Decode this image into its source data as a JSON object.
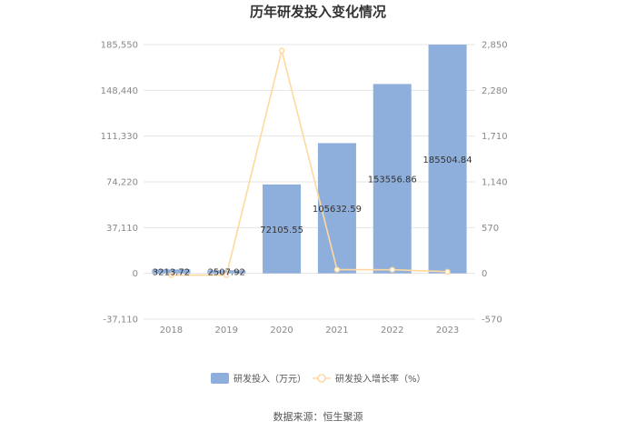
{
  "chart_data": {
    "type": "bar",
    "title": "历年研发投入变化情况",
    "categories": [
      "2018",
      "2019",
      "2020",
      "2021",
      "2022",
      "2023"
    ],
    "series": [
      {
        "name": "研发投入（万元）",
        "type": "bar",
        "axis": "left",
        "color": "#8eaedb",
        "values": [
          3213.72,
          2507.92,
          72105.55,
          105632.59,
          153556.86,
          185504.84
        ],
        "labels": [
          "3213.72",
          "2507.92",
          "72105.55",
          "105632.59",
          "153556.86",
          "185504.84"
        ]
      },
      {
        "name": "研发投入增长率（%）",
        "type": "line",
        "axis": "right",
        "color": "#fdd9a0",
        "values": [
          -21.96,
          -21.96,
          2775.09,
          46.5,
          45.37,
          20.8
        ]
      }
    ],
    "y_left": {
      "ylim": [
        -37110,
        185550
      ],
      "ticks": [
        "185,550",
        "148,440",
        "111,330",
        "74,220",
        "37,110",
        "0",
        "-37,110"
      ]
    },
    "y_right": {
      "ylim": [
        -570,
        2850
      ],
      "ticks": [
        "2,850",
        "2,280",
        "1,710",
        "1,140",
        "570",
        "0",
        "-570"
      ]
    },
    "grid": true,
    "legend_position": "bottom"
  },
  "source": "数据来源：恒生聚源"
}
